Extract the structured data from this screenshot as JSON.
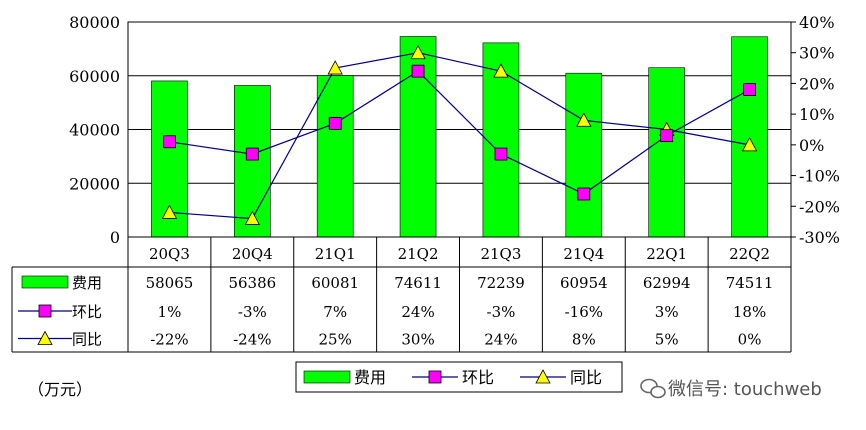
{
  "chart_data": {
    "type": "bar",
    "categories": [
      "20Q3",
      "20Q4",
      "21Q1",
      "21Q2",
      "21Q3",
      "21Q4",
      "22Q1",
      "22Q2"
    ],
    "series": [
      {
        "name": "费用",
        "type": "bar",
        "axis": "left",
        "values": [
          58065,
          56386,
          60081,
          74611,
          72239,
          60954,
          62994,
          74511
        ],
        "color": "#00ff00",
        "table_labels": [
          "58065",
          "56386",
          "60081",
          "74611",
          "72239",
          "60954",
          "62994",
          "74511"
        ]
      },
      {
        "name": "环比",
        "type": "line",
        "axis": "right",
        "values": [
          1,
          -3,
          7,
          24,
          -3,
          -16,
          3,
          18
        ],
        "color": "#ff00ff",
        "marker": "square",
        "table_labels": [
          "1%",
          "-3%",
          "7%",
          "24%",
          "-3%",
          "-16%",
          "3%",
          "18%"
        ]
      },
      {
        "name": "同比",
        "type": "line",
        "axis": "right",
        "values": [
          -22,
          -24,
          25,
          30,
          24,
          8,
          5,
          0
        ],
        "color": "#ffff00",
        "marker": "triangle",
        "table_labels": [
          "-22%",
          "-24%",
          "25%",
          "30%",
          "24%",
          "8%",
          "5%",
          "0%"
        ]
      }
    ],
    "ylim_left": [
      0,
      80000
    ],
    "ylim_right": [
      -30,
      40
    ],
    "left_ticks": [
      "0",
      "20000",
      "40000",
      "60000",
      "80000"
    ],
    "right_ticks": [
      "-30%",
      "-20%",
      "-10%",
      "0%",
      "10%",
      "20%",
      "30%",
      "40%"
    ],
    "unit_label": "（万元）",
    "legend_position": "bottom",
    "grid": true,
    "line_color": "#000080"
  },
  "watermark": {
    "text": "微信号: touchweb",
    "icon": "wechat-icon"
  }
}
